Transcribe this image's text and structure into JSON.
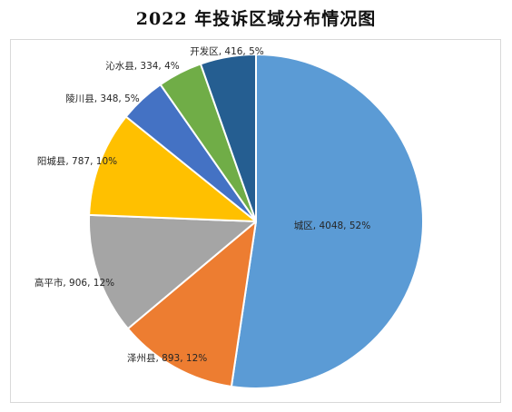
{
  "chart_data": {
    "type": "pie",
    "title": "2022 年投诉区域分布情况图",
    "slices": [
      {
        "label": "城区",
        "value": 4048,
        "percent_label": "52%",
        "color": "#5b9bd5"
      },
      {
        "label": "泽州县",
        "value": 893,
        "percent_label": "12%",
        "color": "#ed7d31"
      },
      {
        "label": "高平市",
        "value": 906,
        "percent_label": "12%",
        "color": "#a5a5a5"
      },
      {
        "label": "阳城县",
        "value": 787,
        "percent_label": "10%",
        "color": "#ffc000"
      },
      {
        "label": "陵川县",
        "value": 348,
        "percent_label": "5%",
        "color": "#4472c4"
      },
      {
        "label": "沁水县",
        "value": 334,
        "percent_label": "4%",
        "color": "#70ad47"
      },
      {
        "label": "开发区",
        "value": 416,
        "percent_label": "5%",
        "color": "#255e91"
      }
    ],
    "legend": "none",
    "data_labels": "category, value, percent"
  }
}
